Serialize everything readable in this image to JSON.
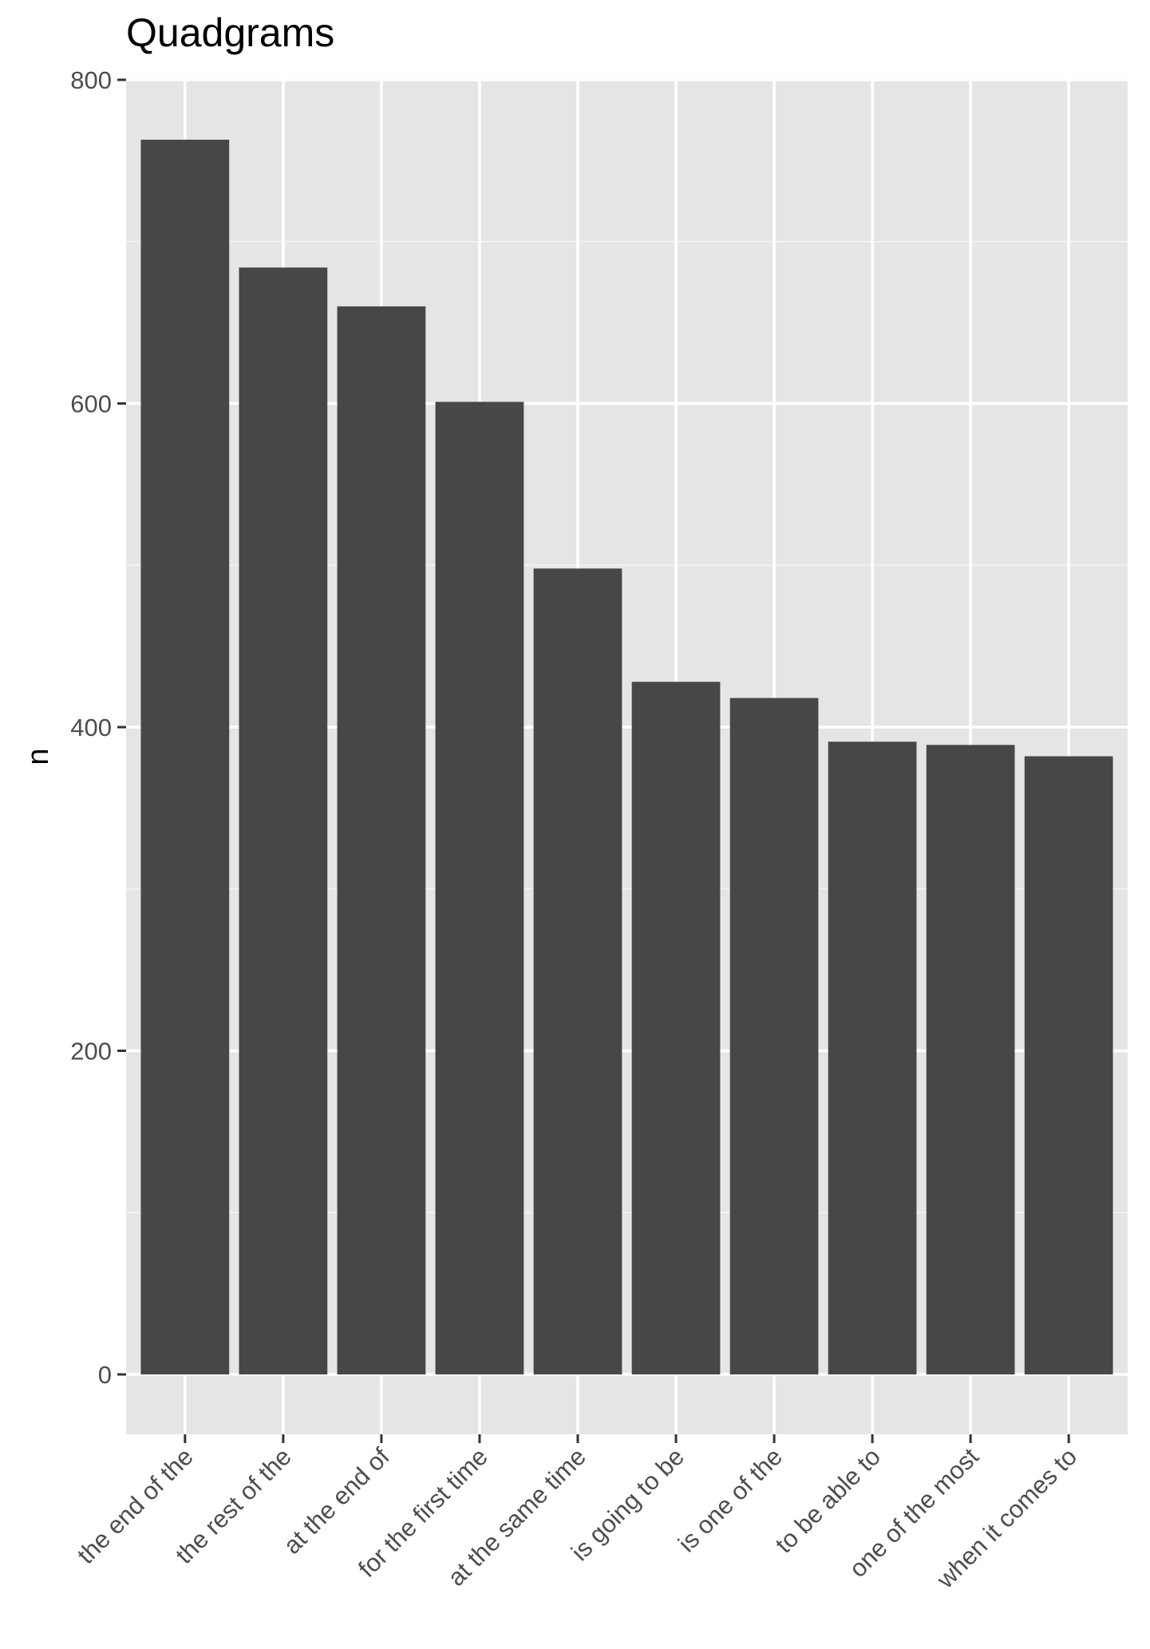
{
  "chart_data": {
    "type": "bar",
    "title": "Quadgrams",
    "xlabel": "",
    "ylabel": "n",
    "categories": [
      "the end of the",
      "the rest of the",
      "at the end of",
      "for the first time",
      "at the same time",
      "is going to be",
      "is one of the",
      "to be able to",
      "one of the most",
      "when it comes to"
    ],
    "values": [
      763,
      684,
      660,
      601,
      498,
      428,
      418,
      391,
      389,
      382
    ],
    "ylim": [
      -37,
      801
    ],
    "yticks": [
      0,
      200,
      400,
      600,
      800
    ],
    "grid": true,
    "legend": "none",
    "colors": {
      "bar": "#474747",
      "panel": "#e5e5e5",
      "grid_major": "#ffffff",
      "grid_minor": "#f2f2f2"
    }
  }
}
